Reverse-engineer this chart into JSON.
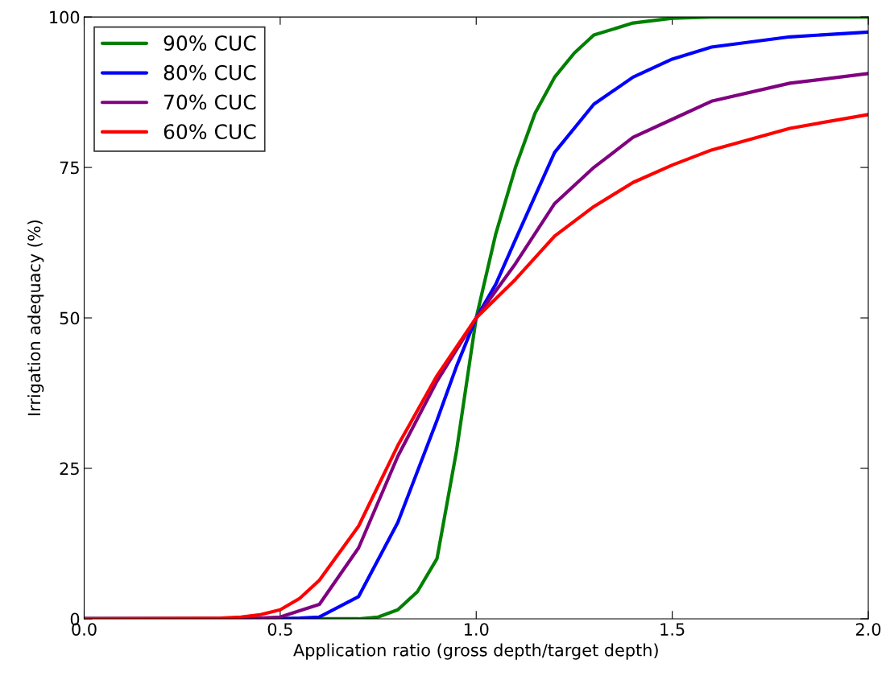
{
  "chart_data": {
    "type": "line",
    "xlabel": "Application ratio (gross depth/target depth)",
    "ylabel": "Irrigation adequacy (%)",
    "xlim": [
      0.0,
      2.0
    ],
    "xticks": [
      {
        "value": 0,
        "label": "0.0"
      },
      0.5,
      {
        "value": 1,
        "label": "1.0"
      },
      1.5,
      {
        "value": 2,
        "label": "2.0"
      }
    ],
    "ylim": [
      0,
      100
    ],
    "yticks": [
      0,
      25,
      50,
      75,
      100
    ],
    "grid": false,
    "legend": "top left",
    "marker": "none",
    "line_style": "solid",
    "series": [
      {
        "name": "90% CUC",
        "color": "#008000",
        "x": [
          0,
          0.7,
          0.75,
          0.8,
          0.85,
          0.9,
          0.95,
          1.0,
          1.05,
          1.1,
          1.15,
          1.2,
          1.25,
          1.3,
          1.4,
          1.5,
          1.6,
          2.0
        ],
        "values": [
          0,
          0,
          0.3,
          1.5,
          4.5,
          10,
          28,
          50,
          64,
          75,
          84,
          90,
          94,
          97,
          99,
          99.8,
          100,
          100
        ]
      },
      {
        "name": "80% CUC",
        "color": "#0000ff",
        "x": [
          0,
          0.5,
          0.55,
          0.6,
          0.7,
          0.8,
          0.9,
          0.95,
          1.0,
          1.05,
          1.1,
          1.2,
          1.3,
          1.4,
          1.5,
          1.6,
          1.8,
          2.0
        ],
        "values": [
          0,
          0,
          0.1,
          0.3,
          3.7,
          16,
          33,
          42,
          50,
          55.6,
          63,
          77.5,
          85.5,
          90,
          93,
          95,
          96.7,
          97.5
        ]
      },
      {
        "name": "70% CUC",
        "color": "#800080",
        "x": [
          0,
          0.4,
          0.45,
          0.5,
          0.6,
          0.7,
          0.8,
          0.9,
          1.0,
          1.1,
          1.2,
          1.3,
          1.4,
          1.5,
          1.6,
          1.8,
          2.0
        ],
        "values": [
          0,
          0,
          0.1,
          0.3,
          2.4,
          11.8,
          27,
          39.5,
          50,
          59,
          69,
          75,
          80,
          83,
          86,
          89,
          90.6
        ]
      },
      {
        "name": "60% CUC",
        "color": "#ff0000",
        "x": [
          0,
          0.35,
          0.4,
          0.45,
          0.5,
          0.55,
          0.6,
          0.7,
          0.8,
          0.9,
          1.0,
          1.1,
          1.2,
          1.3,
          1.4,
          1.5,
          1.6,
          1.8,
          2.0
        ],
        "values": [
          0,
          0.1,
          0.3,
          0.7,
          1.5,
          3.4,
          6.4,
          15.4,
          28.8,
          40.4,
          50,
          56.4,
          63.6,
          68.5,
          72.5,
          75.4,
          77.9,
          81.5,
          83.8
        ]
      }
    ]
  }
}
